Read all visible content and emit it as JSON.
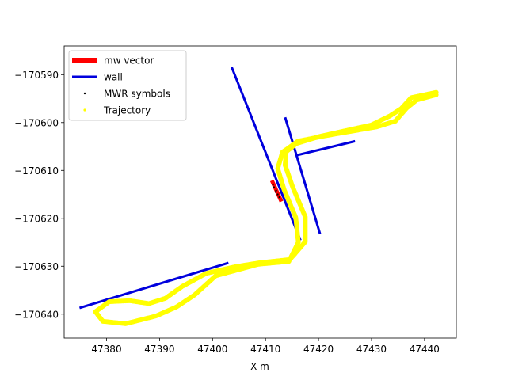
{
  "chart_data": {
    "type": "line",
    "xlabel": "X  m",
    "ylabel": "",
    "xlim": [
      47372,
      47446
    ],
    "ylim": [
      -170645,
      -170584
    ],
    "xticks": [
      47380,
      47390,
      47400,
      47410,
      47420,
      47430,
      47440
    ],
    "xtick_labels": [
      "47380",
      "47390",
      "47400",
      "47410",
      "47420",
      "47430",
      "47440"
    ],
    "yticks": [
      -170590,
      -170600,
      -170610,
      -170620,
      -170630,
      -170640
    ],
    "ytick_labels": [
      "−170590",
      "−170600",
      "−170610",
      "−170620",
      "−170630",
      "−170640"
    ],
    "grid": false,
    "legend_position": "top-left",
    "legend": [
      {
        "label": "mw vector",
        "color": "#ff0000",
        "marker": "thick-line"
      },
      {
        "label": "wall",
        "color": "#0000dd",
        "marker": "line"
      },
      {
        "label": "MWR symbols",
        "color": "#000000",
        "marker": "dot"
      },
      {
        "label": "Trajectory",
        "color": "#ffff00",
        "marker": "dot"
      }
    ],
    "series": [
      {
        "name": "wall",
        "color": "#0000dd",
        "segments": [
          [
            [
              47403.6,
              -170588.4
            ],
            [
              47416.6,
              -170624.6
            ]
          ],
          [
            [
              47413.7,
              -170598.9
            ],
            [
              47420.3,
              -170623.3
            ]
          ],
          [
            [
              47416.0,
              -170606.8
            ],
            [
              47426.9,
              -170603.9
            ]
          ],
          [
            [
              47374.9,
              -170638.7
            ],
            [
              47403.0,
              -170629.3
            ]
          ]
        ]
      },
      {
        "name": "mw vector",
        "color": "#ff0000",
        "segments": [
          [
            [
              47411.2,
              -170612.1
            ],
            [
              47413.0,
              -170616.5
            ]
          ]
        ]
      },
      {
        "name": "MWR symbols",
        "color": "#000000",
        "points": [
          [
            47411.6,
            -170613.5
          ],
          [
            47411.9,
            -170614.5
          ],
          [
            47412.3,
            -170615.0
          ],
          [
            47412.6,
            -170615.6
          ],
          [
            47412.0,
            -170614.2
          ],
          [
            47411.4,
            -170613.0
          ]
        ]
      },
      {
        "name": "Trajectory",
        "color": "#ffff00",
        "points": [
          [
            47442.2,
            -170593.7
          ],
          [
            47437.5,
            -170594.8
          ],
          [
            47435.6,
            -170597.1
          ],
          [
            47433.5,
            -170598.6
          ],
          [
            47430.0,
            -170600.5
          ],
          [
            47420.2,
            -170602.9
          ],
          [
            47415.8,
            -170604.4
          ],
          [
            47413.9,
            -170606.1
          ],
          [
            47413.7,
            -170608.9
          ],
          [
            47415.1,
            -170613.4
          ],
          [
            47417.5,
            -170619.7
          ],
          [
            47417.5,
            -170624.9
          ],
          [
            47414.6,
            -170628.6
          ],
          [
            47408.8,
            -170629.3
          ],
          [
            47404.3,
            -170630.1
          ],
          [
            47398.8,
            -170631.5
          ],
          [
            47394.3,
            -170634.2
          ],
          [
            47391.1,
            -170636.7
          ],
          [
            47388.0,
            -170637.8
          ],
          [
            47384.4,
            -170637.2
          ],
          [
            47380.5,
            -170637.4
          ],
          [
            47377.9,
            -170639.5
          ],
          [
            47379.3,
            -170641.5
          ],
          [
            47383.6,
            -170642.0
          ],
          [
            47389.3,
            -170640.4
          ],
          [
            47393.2,
            -170638.5
          ],
          [
            47396.6,
            -170636.0
          ],
          [
            47400.6,
            -170632.0
          ],
          [
            47408.6,
            -170629.6
          ],
          [
            47414.4,
            -170629.0
          ],
          [
            47416.2,
            -170625.0
          ],
          [
            47415.7,
            -170619.8
          ],
          [
            47413.5,
            -170614.0
          ],
          [
            47412.3,
            -170609.6
          ],
          [
            47413.2,
            -170606.2
          ],
          [
            47416.1,
            -170603.9
          ],
          [
            47421.1,
            -170602.8
          ],
          [
            47431.0,
            -170600.9
          ],
          [
            47434.5,
            -170599.7
          ],
          [
            47436.6,
            -170597.0
          ],
          [
            47438.5,
            -170595.3
          ],
          [
            47442.2,
            -170594.2
          ]
        ]
      }
    ]
  }
}
